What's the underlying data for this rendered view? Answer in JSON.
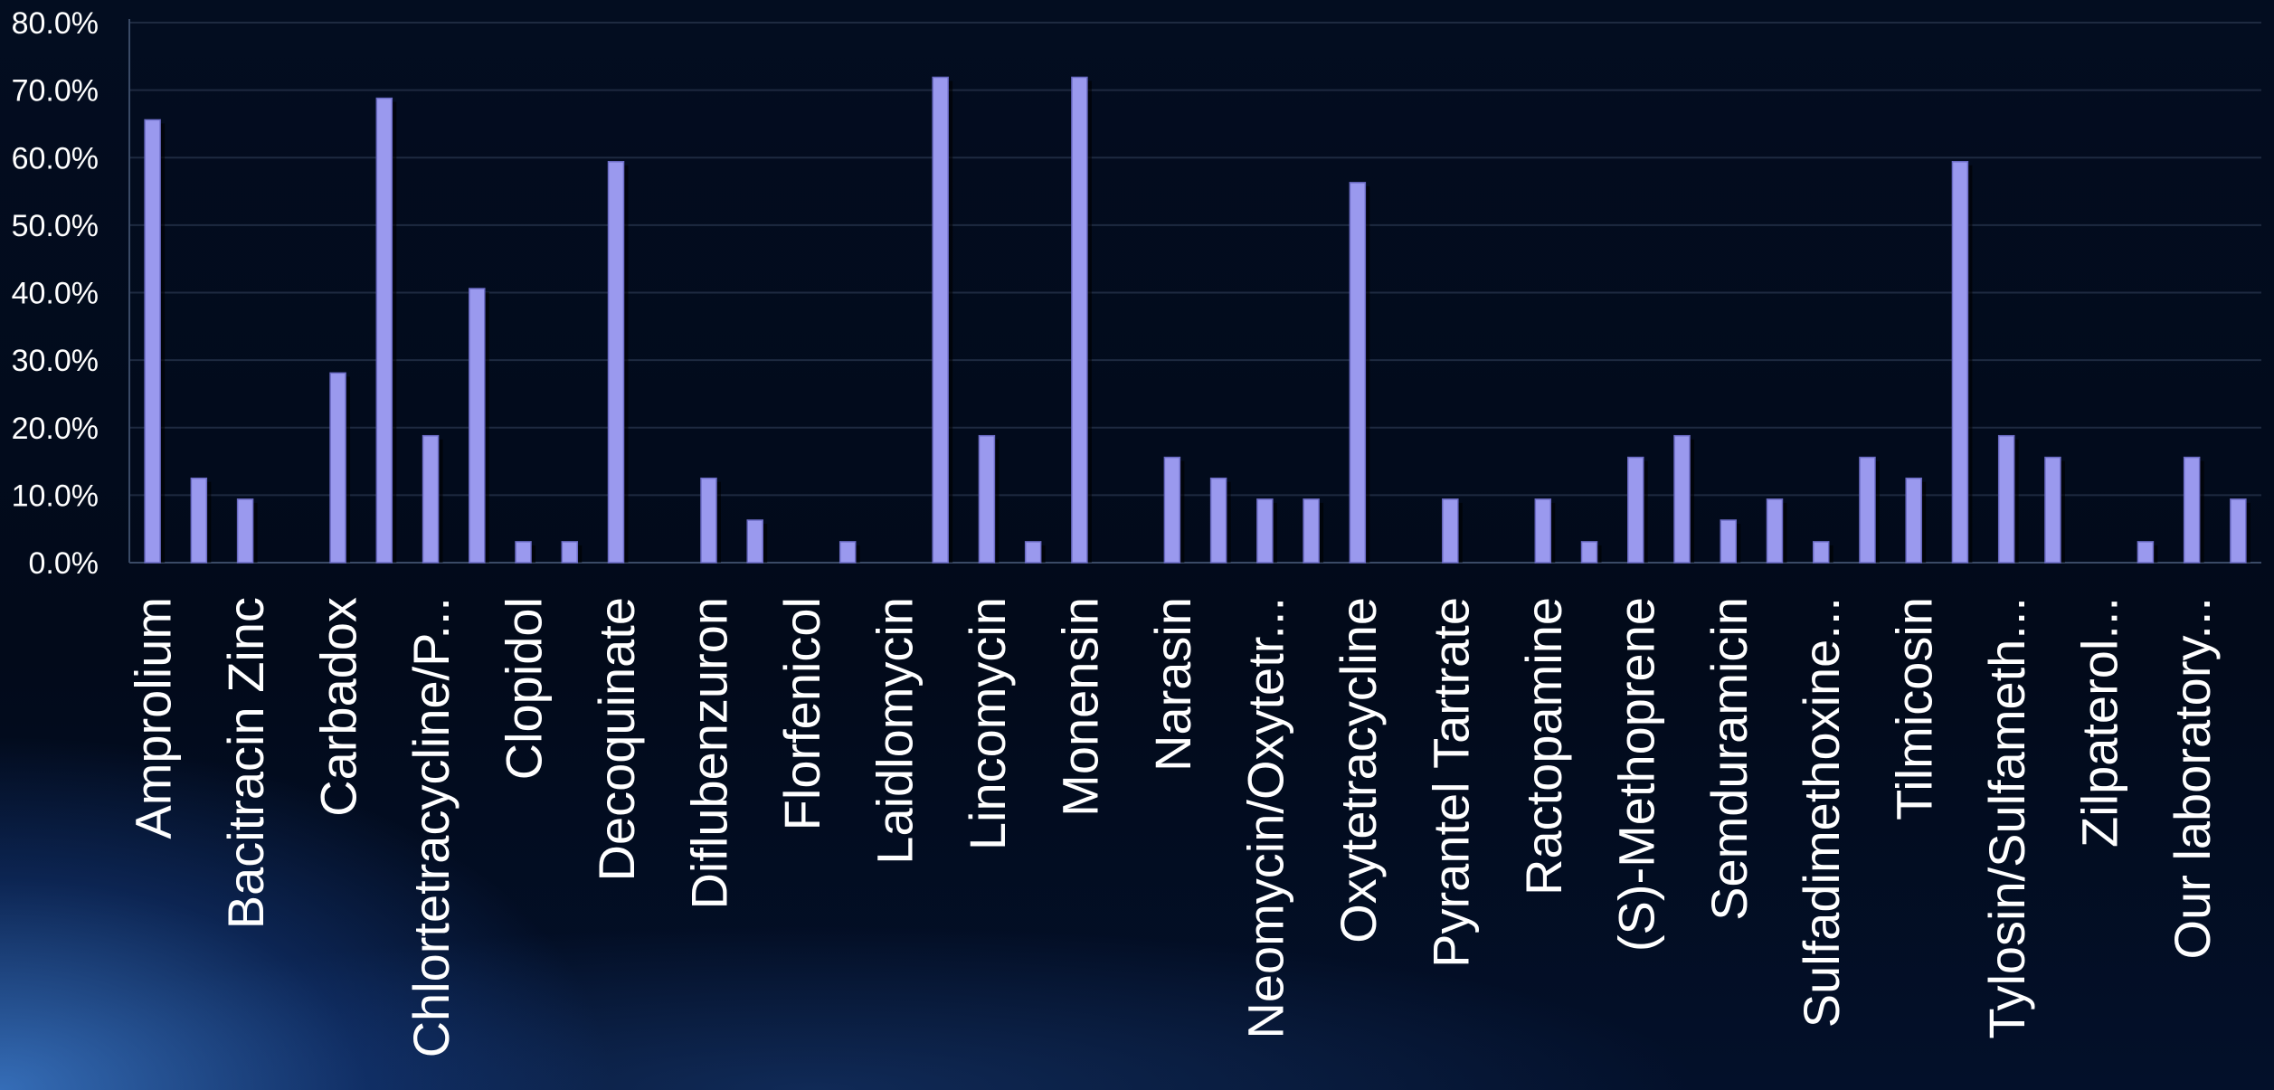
{
  "chart_data": {
    "type": "bar",
    "title": "",
    "xlabel": "",
    "ylabel": "",
    "ylim": [
      0,
      80
    ],
    "yticks": [
      0,
      10,
      20,
      30,
      40,
      50,
      60,
      70,
      80
    ],
    "ytick_labels": [
      "0.0%",
      "10.0%",
      "20.0%",
      "30.0%",
      "40.0%",
      "50.0%",
      "60.0%",
      "70.0%",
      "80.0%"
    ],
    "grid": "horizontal",
    "bar_color": "#9a99ee",
    "categories": [
      "Amprolium",
      "",
      "Bacitracin Zinc",
      "",
      "Carbadox",
      "",
      "Chlortetracycline/P...",
      "",
      "Clopidol",
      "",
      "Decoquinate",
      "",
      "Diflubenzuron",
      "",
      "Florfenicol",
      "",
      "Laidlomycin",
      "",
      "Lincomycin",
      "",
      "Monensin",
      "",
      "Narasin",
      "",
      "Neomycin/Oxytetr...",
      "",
      "Oxytetracycline",
      "",
      "Pyrantel Tartrate",
      "",
      "Ractopamine",
      "",
      "(S)-Methoprene",
      "",
      "Semduramicin",
      "",
      "Sulfadimethoxine...",
      "",
      "Tilmicosin",
      "",
      "Tylosin/Sulfameth...",
      "",
      "Zilpaterol...",
      "",
      "Our laboratory...",
      ""
    ],
    "values": [
      65.6,
      12.5,
      9.4,
      0,
      28.1,
      68.8,
      18.8,
      40.6,
      3.1,
      3.1,
      59.4,
      0,
      12.5,
      6.3,
      0,
      3.1,
      0,
      71.9,
      18.8,
      3.1,
      71.9,
      0,
      15.6,
      12.5,
      9.4,
      9.4,
      56.3,
      0,
      9.4,
      0,
      9.4,
      3.1,
      15.6,
      18.8,
      6.3,
      9.4,
      3.1,
      15.6,
      12.5,
      59.4,
      18.8,
      15.6,
      0,
      3.1,
      15.6,
      9.4
    ]
  }
}
